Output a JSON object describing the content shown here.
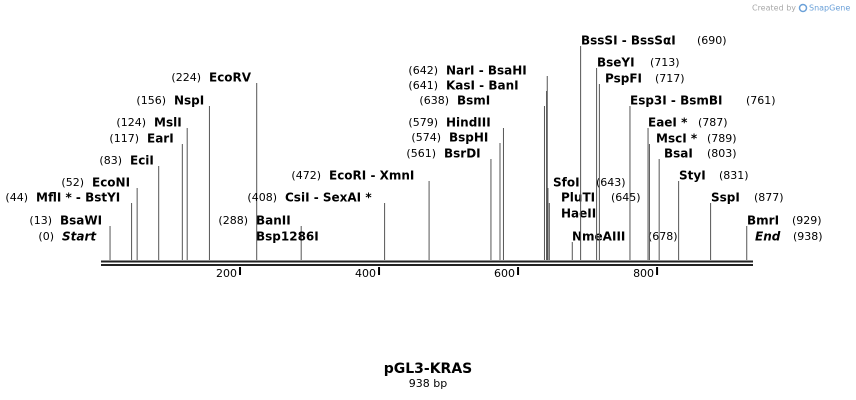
{
  "watermark": {
    "prefix": "Created by",
    "brand": "SnapGene"
  },
  "title": "pGL3-KRAS",
  "subtitle": "938 bp",
  "axis": {
    "range": [
      0,
      938
    ],
    "ticks": [
      200,
      400,
      600,
      800
    ]
  },
  "sites": [
    {
      "names": [
        "Start"
      ],
      "position": 0,
      "position_label": "(0)",
      "italic": true
    },
    {
      "names": [
        "BsaWI"
      ],
      "position": 13,
      "position_label": "(13)"
    },
    {
      "names": [
        "MflI * - BstYI"
      ],
      "position": 44,
      "position_label": "(44)"
    },
    {
      "names": [
        "EcoNI"
      ],
      "position": 52,
      "position_label": "(52)"
    },
    {
      "names": [
        "EciI"
      ],
      "position": 83,
      "position_label": "(83)"
    },
    {
      "names": [
        "EarI"
      ],
      "position": 117,
      "position_label": "(117)"
    },
    {
      "names": [
        "MslI"
      ],
      "position": 124,
      "position_label": "(124)"
    },
    {
      "names": [
        "NspI"
      ],
      "position": 156,
      "position_label": "(156)"
    },
    {
      "names": [
        "EcoRV"
      ],
      "position": 224,
      "position_label": "(224)"
    },
    {
      "names": [
        "BanII",
        "Bsp1286I"
      ],
      "position": 288,
      "position_label": "(288)"
    },
    {
      "names": [
        "CsiI  - SexAI *"
      ],
      "position": 408,
      "position_label": "(408)"
    },
    {
      "names": [
        "EcoRI  - XmnI"
      ],
      "position": 472,
      "position_label": "(472)"
    },
    {
      "names": [
        "BsrDI"
      ],
      "position": 561,
      "position_label": "(561)"
    },
    {
      "names": [
        "BspHI"
      ],
      "position": 574,
      "position_label": "(574)"
    },
    {
      "names": [
        "HindIII"
      ],
      "position": 579,
      "position_label": "(579)"
    },
    {
      "names": [
        "BsmI"
      ],
      "position": 638,
      "position_label": "(638)"
    },
    {
      "names": [
        "KasI  - BanI"
      ],
      "position": 641,
      "position_label": "(641)"
    },
    {
      "names": [
        "NarI  - BsaHI"
      ],
      "position": 642,
      "position_label": "(642)"
    },
    {
      "names": [
        "SfoI"
      ],
      "position": 643,
      "position_label": "(643)"
    },
    {
      "names": [
        "PluTI",
        "HaeII"
      ],
      "position": 645,
      "position_label": "(645)"
    },
    {
      "names": [
        "NmeAIII"
      ],
      "position": 678,
      "position_label": "(678)"
    },
    {
      "names": [
        "BssSI  - BssSαI"
      ],
      "position": 690,
      "position_label": "(690)"
    },
    {
      "names": [
        "BseYI"
      ],
      "position": 713,
      "position_label": "(713)"
    },
    {
      "names": [
        "PspFI"
      ],
      "position": 717,
      "position_label": "(717)"
    },
    {
      "names": [
        "Esp3I  - BsmBI"
      ],
      "position": 761,
      "position_label": "(761)"
    },
    {
      "names": [
        "EaeI *"
      ],
      "position": 787,
      "position_label": "(787)"
    },
    {
      "names": [
        "MscI *"
      ],
      "position": 789,
      "position_label": "(789)"
    },
    {
      "names": [
        "BsaI"
      ],
      "position": 803,
      "position_label": "(803)"
    },
    {
      "names": [
        "StyI"
      ],
      "position": 831,
      "position_label": "(831)"
    },
    {
      "names": [
        "SspI"
      ],
      "position": 877,
      "position_label": "(877)"
    },
    {
      "names": [
        "BmrI"
      ],
      "position": 929,
      "position_label": "(929)"
    },
    {
      "names": [
        "End"
      ],
      "position": 938,
      "position_label": "(938)",
      "italic": true
    }
  ]
}
